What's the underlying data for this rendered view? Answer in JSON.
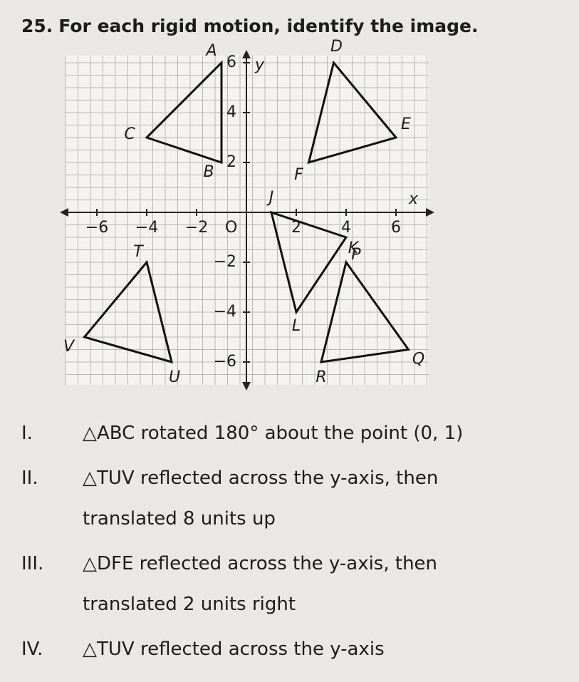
{
  "problem": {
    "number": "25.",
    "prompt": "For each rigid motion, identify the image."
  },
  "graph": {
    "x_axis_label": "x",
    "y_axis_label": "y",
    "origin_label": "O",
    "x_ticks": [
      {
        "value": -6,
        "label": "−6"
      },
      {
        "value": -4,
        "label": "−4"
      },
      {
        "value": -2,
        "label": "−2"
      },
      2,
      4,
      6
    ],
    "y_ticks": [
      {
        "value": -6,
        "label": "−6"
      },
      {
        "value": -4,
        "label": "−4"
      },
      {
        "value": -2,
        "label": "−2"
      },
      2,
      4,
      6
    ],
    "vertex_labels": [
      "A",
      "B",
      "C",
      "D",
      "E",
      "F",
      "J",
      "K",
      "L",
      "P",
      "Q",
      "R",
      "T",
      "U",
      "V"
    ]
  },
  "items": [
    {
      "numeral": "I.",
      "text": "△ABC rotated 180° about the point (0, 1)"
    },
    {
      "numeral": "II.",
      "text": "△TUV reflected across the y-axis, then translated 8 units up"
    },
    {
      "numeral": "III.",
      "text": "△DFE reflected across the y-axis, then translated 2 units right"
    },
    {
      "numeral": "IV.",
      "text": "△TUV reflected across the y-axis"
    }
  ]
}
